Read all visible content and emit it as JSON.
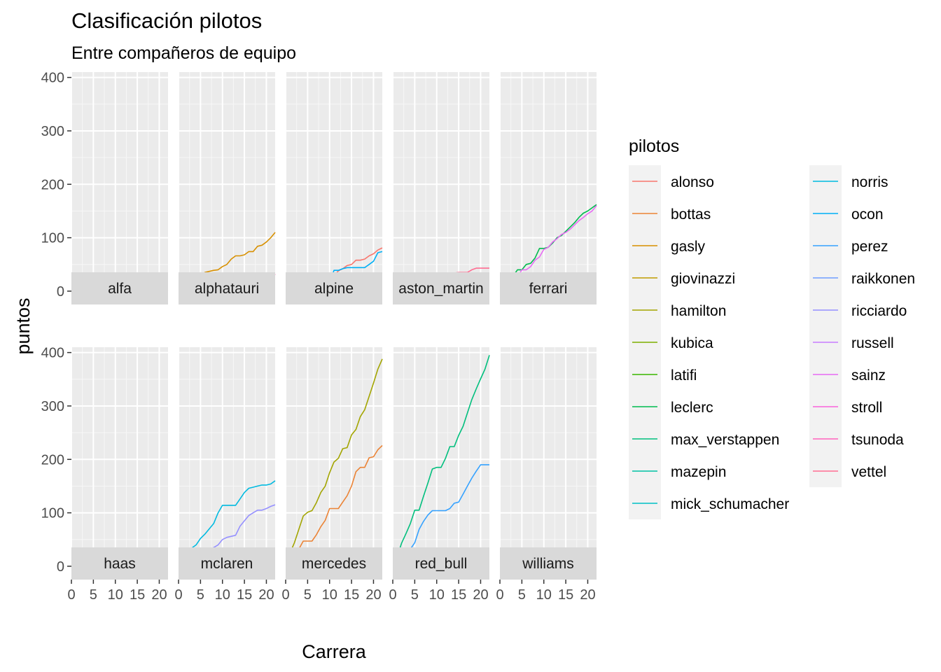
{
  "chart_data": {
    "type": "line",
    "title": "Clasificación pilotos",
    "subtitle": "Entre compañeros de equipo",
    "xlabel": "Carrera",
    "ylabel": "puntos",
    "xlim": [
      0,
      22
    ],
    "ylim": [
      -25,
      410
    ],
    "x_ticks": [
      0,
      5,
      10,
      15,
      20
    ],
    "y_ticks": [
      0,
      100,
      200,
      300,
      400
    ],
    "grid": true,
    "legend": {
      "title": "pilotos",
      "position": "right"
    },
    "drivers": [
      {
        "name": "alonso",
        "color": "#F8766D"
      },
      {
        "name": "bottas",
        "color": "#EB8335"
      },
      {
        "name": "gasly",
        "color": "#D89000"
      },
      {
        "name": "giovinazzi",
        "color": "#C09B00"
      },
      {
        "name": "hamilton",
        "color": "#A3A500"
      },
      {
        "name": "kubica",
        "color": "#7CAE00"
      },
      {
        "name": "latifi",
        "color": "#39B600"
      },
      {
        "name": "leclerc",
        "color": "#00BB4E"
      },
      {
        "name": "max_verstappen",
        "color": "#00BF7D"
      },
      {
        "name": "mazepin",
        "color": "#00C1A3"
      },
      {
        "name": "mick_schumacher",
        "color": "#00BFC4"
      },
      {
        "name": "norris",
        "color": "#00BAE0"
      },
      {
        "name": "ocon",
        "color": "#00B0F6"
      },
      {
        "name": "perez",
        "color": "#35A2FF"
      },
      {
        "name": "raikkonen",
        "color": "#6E9DFF"
      },
      {
        "name": "ricciardo",
        "color": "#9590FF"
      },
      {
        "name": "russell",
        "color": "#C77CFF"
      },
      {
        "name": "sainz",
        "color": "#E76BF3"
      },
      {
        "name": "stroll",
        "color": "#FA62DB"
      },
      {
        "name": "tsunoda",
        "color": "#FF62BC"
      },
      {
        "name": "vettel",
        "color": "#FF6C91"
      }
    ],
    "panels": [
      {
        "team": "alfa",
        "series": [
          {
            "driver": "raikkonen",
            "x": [
              1,
              5,
              10,
              14,
              16,
              18,
              22
            ],
            "y": [
              0,
              0,
              0,
              2,
              6,
              9,
              10
            ]
          },
          {
            "driver": "giovinazzi",
            "x": [
              1,
              5,
              10,
              14,
              16,
              18,
              22
            ],
            "y": [
              0,
              0,
              1,
              1,
              1,
              1,
              3
            ]
          }
        ]
      },
      {
        "team": "alphatauri",
        "series": [
          {
            "driver": "gasly",
            "x": [
              1,
              2,
              3,
              4,
              5,
              6,
              7,
              8,
              9,
              10,
              11,
              12,
              13,
              14,
              15,
              16,
              17,
              18,
              19,
              20,
              21,
              22
            ],
            "y": [
              0,
              6,
              10,
              15,
              26,
              35,
              37,
              39,
              40,
              46,
              50,
              60,
              66,
              66,
              68,
              74,
              74,
              84,
              86,
              92,
              100,
              110
            ]
          },
          {
            "driver": "tsunoda",
            "x": [
              1,
              2,
              3,
              4,
              5,
              6,
              7,
              8,
              9,
              10,
              11,
              12,
              13,
              14,
              15,
              16,
              17,
              18,
              19,
              20,
              21,
              22
            ],
            "y": [
              2,
              2,
              2,
              2,
              7,
              9,
              9,
              9,
              9,
              18,
              18,
              18,
              18,
              18,
              18,
              18,
              18,
              20,
              20,
              20,
              20,
              32
            ]
          }
        ]
      },
      {
        "team": "alpine",
        "series": [
          {
            "driver": "alonso",
            "x": [
              1,
              2,
              3,
              4,
              5,
              6,
              7,
              8,
              9,
              10,
              11,
              12,
              13,
              14,
              15,
              16,
              17,
              18,
              19,
              20,
              21,
              22
            ],
            "y": [
              0,
              5,
              7,
              9,
              10,
              11,
              14,
              17,
              20,
              23,
              28,
              38,
              42,
              48,
              50,
              58,
              58,
              60,
              66,
              70,
              77,
              81
            ]
          },
          {
            "driver": "ocon",
            "x": [
              1,
              2,
              3,
              4,
              5,
              6,
              7,
              8,
              9,
              10,
              11,
              12,
              13,
              14,
              15,
              16,
              17,
              18,
              19,
              20,
              21,
              22
            ],
            "y": [
              0,
              2,
              6,
              8,
              12,
              12,
              12,
              12,
              12,
              12,
              39,
              39,
              42,
              44,
              44,
              44,
              44,
              44,
              50,
              56,
              72,
              74
            ]
          }
        ]
      },
      {
        "team": "aston_martin",
        "series": [
          {
            "driver": "vettel",
            "x": [
              1,
              2,
              3,
              4,
              5,
              6,
              7,
              8,
              9,
              10,
              11,
              12,
              13,
              14,
              15,
              16,
              17,
              18,
              19,
              20,
              21,
              22
            ],
            "y": [
              0,
              5,
              5,
              5,
              25,
              30,
              30,
              30,
              30,
              30,
              34,
              34,
              34,
              34,
              35,
              35,
              35,
              40,
              43,
              43,
              43,
              43
            ]
          },
          {
            "driver": "stroll",
            "x": [
              1,
              2,
              3,
              4,
              5,
              6,
              7,
              8,
              9,
              10,
              11,
              12,
              13,
              14,
              15,
              16,
              17,
              18,
              19,
              20,
              21,
              22
            ],
            "y": [
              0,
              1,
              1,
              1,
              5,
              9,
              9,
              13,
              18,
              18,
              18,
              18,
              18,
              20,
              24,
              24,
              24,
              26,
              26,
              26,
              34,
              34
            ]
          }
        ]
      },
      {
        "team": "ferrari",
        "series": [
          {
            "driver": "leclerc",
            "x": [
              1,
              2,
              3,
              4,
              5,
              6,
              7,
              8,
              9,
              10,
              11,
              12,
              13,
              14,
              15,
              16,
              17,
              18,
              19,
              20,
              21,
              22
            ],
            "y": [
              8,
              20,
              28,
              40,
              40,
              50,
              52,
              62,
              80,
              80,
              82,
              90,
              100,
              104,
              112,
              120,
              128,
              138,
              146,
              150,
              156,
              162
            ]
          },
          {
            "driver": "sainz",
            "x": [
              1,
              2,
              3,
              4,
              5,
              6,
              7,
              8,
              9,
              10,
              11,
              12,
              13,
              14,
              15,
              16,
              17,
              18,
              19,
              20,
              21,
              22
            ],
            "y": [
              2,
              10,
              14,
              26,
              40,
              40,
              46,
              58,
              64,
              78,
              82,
              92,
              98,
              106,
              110,
              116,
              124,
              132,
              138,
              145,
              150,
              160
            ]
          }
        ]
      },
      {
        "team": "haas",
        "series": [
          {
            "driver": "mick_schumacher",
            "x": [
              1,
              22
            ],
            "y": [
              0,
              0
            ]
          },
          {
            "driver": "mazepin",
            "x": [
              1,
              22
            ],
            "y": [
              0,
              0
            ]
          }
        ]
      },
      {
        "team": "mclaren",
        "series": [
          {
            "driver": "norris",
            "x": [
              1,
              2,
              3,
              4,
              5,
              6,
              7,
              8,
              9,
              10,
              11,
              12,
              13,
              14,
              15,
              16,
              17,
              18,
              19,
              20,
              21,
              22
            ],
            "y": [
              8,
              20,
              34,
              40,
              52,
              60,
              70,
              80,
              100,
              114,
              114,
              114,
              114,
              126,
              138,
              146,
              148,
              150,
              152,
              152,
              154,
              160
            ]
          },
          {
            "driver": "ricciardo",
            "x": [
              1,
              2,
              3,
              4,
              5,
              6,
              7,
              8,
              9,
              10,
              11,
              12,
              13,
              14,
              15,
              16,
              17,
              18,
              19,
              20,
              21,
              22
            ],
            "y": [
              6,
              10,
              16,
              20,
              24,
              26,
              30,
              35,
              40,
              50,
              54,
              56,
              58,
              75,
              85,
              95,
              100,
              105,
              105,
              108,
              112,
              115
            ]
          }
        ]
      },
      {
        "team": "mercedes",
        "series": [
          {
            "driver": "hamilton",
            "x": [
              1,
              2,
              3,
              4,
              5,
              6,
              7,
              8,
              9,
              10,
              11,
              12,
              13,
              14,
              15,
              16,
              17,
              18,
              19,
              20,
              21,
              22
            ],
            "y": [
              25,
              44,
              69,
              94,
              101,
              104,
              119,
              138,
              150,
              175,
              195,
              202,
              220,
              222,
              246,
              256,
              280,
              293,
              318,
              343,
              369,
              388
            ]
          },
          {
            "driver": "bottas",
            "x": [
              1,
              2,
              3,
              4,
              5,
              6,
              7,
              8,
              9,
              10,
              11,
              12,
              13,
              14,
              15,
              16,
              17,
              18,
              19,
              20,
              21,
              22
            ],
            "y": [
              16,
              16,
              32,
              47,
              47,
              47,
              59,
              74,
              86,
              108,
              108,
              108,
              120,
              132,
              150,
              177,
              185,
              185,
              203,
              205,
              218,
              226
            ]
          }
        ]
      },
      {
        "team": "red_bull",
        "series": [
          {
            "driver": "max_verstappen",
            "x": [
              1,
              2,
              3,
              4,
              5,
              6,
              7,
              8,
              9,
              10,
              11,
              12,
              13,
              14,
              15,
              16,
              17,
              18,
              19,
              20,
              21,
              22
            ],
            "y": [
              18,
              43,
              61,
              80,
              105,
              105,
              131,
              156,
              182,
              185,
              185,
              202,
              224,
              224,
              245,
              262,
              287,
              312,
              332,
              351,
              369,
              395
            ]
          },
          {
            "driver": "perez",
            "x": [
              1,
              2,
              3,
              4,
              5,
              6,
              7,
              8,
              9,
              10,
              11,
              12,
              13,
              14,
              15,
              16,
              17,
              18,
              19,
              20,
              21,
              22
            ],
            "y": [
              10,
              10,
              22,
              32,
              44,
              69,
              84,
              96,
              104,
              104,
              104,
              104,
              108,
              118,
              120,
              135,
              150,
              165,
              178,
              190,
              190,
              190
            ]
          }
        ]
      },
      {
        "team": "williams",
        "series": [
          {
            "driver": "russell",
            "x": [
              1,
              10,
              11,
              12,
              13,
              14,
              15,
              22
            ],
            "y": [
              0,
              0,
              10,
              12,
              14,
              15,
              16,
              16
            ]
          },
          {
            "driver": "latifi",
            "x": [
              1,
              10,
              11,
              12,
              22
            ],
            "y": [
              0,
              0,
              4,
              7,
              7
            ]
          }
        ]
      }
    ]
  }
}
